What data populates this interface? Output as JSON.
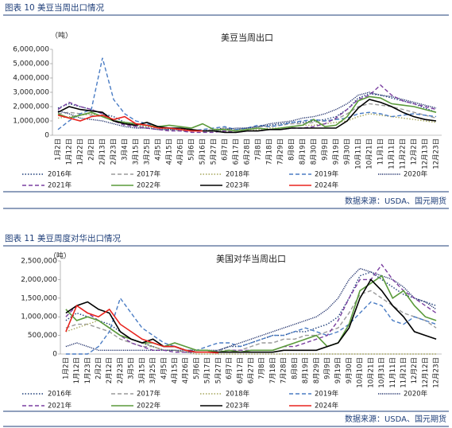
{
  "chart_data": [
    {
      "type": "line",
      "caption": "图表 10 美豆当周出口情况",
      "title": "美豆当周出口",
      "unit": "（吨）",
      "source": "数据来源：USDA、国元期货",
      "categories": [
        "1月2日",
        "1月12日",
        "1月22日",
        "2月2日",
        "2月13日",
        "2月23日",
        "3月4日",
        "3月15日",
        "3月25日",
        "4月5日",
        "4月15日",
        "4月26日",
        "5月6日",
        "5月16日",
        "5月27日",
        "6月7日",
        "6月17日",
        "6月28日",
        "7月8日",
        "7月18日",
        "7月29日",
        "8月8日",
        "8月19日",
        "8月30日",
        "9月9日",
        "9月19日",
        "9月30日",
        "10月11日",
        "10月21日",
        "11月1日",
        "11月11日",
        "11月22日",
        "12月2日",
        "12月13日",
        "12月23日"
      ],
      "ylim": [
        0,
        6000000
      ],
      "yticks": [
        0,
        {
          "value": 1000000,
          "label": "1,000,000"
        },
        {
          "value": 2000000,
          "label": "2,000,000"
        },
        {
          "value": 3000000,
          "label": "3,000,000"
        },
        {
          "value": 4000000,
          "label": "4,000,000"
        },
        {
          "value": 5000000,
          "label": "5,000,000"
        },
        {
          "value": 6000000,
          "label": "6,000,000"
        }
      ],
      "series": [
        {
          "name": "2016年",
          "color": "#1f3f7a",
          "style": "dotted",
          "values": [
            1900000,
            2200000,
            2000000,
            1800000,
            1500000,
            1300000,
            900000,
            700000,
            600000,
            500000,
            400000,
            400000,
            300000,
            300000,
            400000,
            500000,
            400000,
            500000,
            600000,
            700000,
            800000,
            900000,
            900000,
            1000000,
            1100000,
            1300000,
            1800000,
            2600000,
            2900000,
            2800000,
            2600000,
            2400000,
            2200000,
            1900000,
            1600000
          ]
        },
        {
          "name": "2017年",
          "color": "#9a9a9a",
          "style": "dashed",
          "values": [
            1500000,
            1600000,
            1500000,
            1400000,
            1300000,
            1100000,
            800000,
            600000,
            500000,
            400000,
            400000,
            300000,
            300000,
            300000,
            400000,
            500000,
            400000,
            500000,
            600000,
            600000,
            700000,
            800000,
            800000,
            900000,
            1000000,
            1100000,
            1500000,
            2000000,
            2200000,
            2100000,
            2000000,
            1800000,
            1600000,
            1400000,
            1200000
          ]
        },
        {
          "name": "2018年",
          "color": "#a5a55a",
          "style": "dotted",
          "values": [
            1200000,
            1300000,
            1400000,
            1500000,
            1300000,
            1000000,
            800000,
            700000,
            600000,
            500000,
            500000,
            400000,
            400000,
            300000,
            300000,
            300000,
            200000,
            300000,
            400000,
            500000,
            500000,
            600000,
            700000,
            700000,
            800000,
            900000,
            1000000,
            1300000,
            1500000,
            1400000,
            1300000,
            1200000,
            1100000,
            1000000,
            900000
          ]
        },
        {
          "name": "2019年",
          "color": "#4a7cc4",
          "style": "dashed",
          "values": [
            400000,
            1000000,
            1500000,
            1800000,
            5400000,
            2500000,
            1500000,
            1000000,
            800000,
            600000,
            500000,
            400000,
            300000,
            400000,
            500000,
            600000,
            400000,
            500000,
            700000,
            600000,
            700000,
            900000,
            1000000,
            1100000,
            1000000,
            1100000,
            1200000,
            1500000,
            1600000,
            1500000,
            1300000,
            1400000,
            1500000,
            1400000,
            1300000
          ]
        },
        {
          "name": "2020年",
          "color": "#1f2f6a",
          "style": "dense",
          "values": [
            1700000,
            1500000,
            1200000,
            1100000,
            1000000,
            800000,
            600000,
            500000,
            500000,
            400000,
            400000,
            400000,
            300000,
            300000,
            300000,
            400000,
            500000,
            500000,
            600000,
            800000,
            900000,
            1000000,
            1200000,
            1300000,
            1500000,
            1800000,
            2200000,
            2800000,
            3000000,
            2800000,
            2700000,
            2500000,
            2300000,
            2100000,
            1900000
          ]
        },
        {
          "name": "2021年",
          "color": "#7a3fa0",
          "style": "dashed",
          "values": [
            1800000,
            2300000,
            2000000,
            1800000,
            1500000,
            1000000,
            700000,
            600000,
            500000,
            400000,
            300000,
            300000,
            200000,
            200000,
            200000,
            300000,
            200000,
            300000,
            300000,
            400000,
            400000,
            500000,
            500000,
            600000,
            800000,
            1200000,
            1800000,
            2500000,
            2800000,
            3500000,
            2800000,
            2400000,
            2200000,
            2000000,
            1800000
          ]
        },
        {
          "name": "2022年",
          "color": "#5a9a3a",
          "style": "solid",
          "values": [
            1500000,
            1200000,
            1400000,
            1600000,
            1300000,
            1000000,
            900000,
            800000,
            700000,
            600000,
            700000,
            600000,
            500000,
            800000,
            400000,
            400000,
            300000,
            400000,
            500000,
            400000,
            500000,
            600000,
            700000,
            1100000,
            600000,
            700000,
            1300000,
            2400000,
            2700000,
            2600000,
            2200000,
            2100000,
            2000000,
            1800000,
            1600000
          ]
        },
        {
          "name": "2023年",
          "color": "#000000",
          "style": "solid",
          "values": [
            1600000,
            2000000,
            1800000,
            1700000,
            1600000,
            1000000,
            800000,
            700000,
            900000,
            600000,
            500000,
            500000,
            400000,
            300000,
            300000,
            200000,
            200000,
            300000,
            300000,
            400000,
            400000,
            500000,
            500000,
            500000,
            500000,
            500000,
            1000000,
            1900000,
            2500000,
            2300000,
            2000000,
            1600000,
            1300000,
            1100000,
            1000000
          ]
        },
        {
          "name": "2024年",
          "color": "#e8231e",
          "style": "solid",
          "values": [
            1400000,
            1200000,
            1000000,
            1300000,
            1400000,
            1100000,
            1300000,
            800000,
            700000,
            500000,
            500000,
            400000,
            300000,
            300000,
            null,
            null,
            null,
            null,
            null,
            null,
            null,
            null,
            null,
            null,
            null,
            null,
            null,
            null,
            null,
            null,
            null,
            null,
            null,
            null,
            null
          ]
        }
      ]
    },
    {
      "type": "line",
      "caption": "图表 11 美豆周度对华出口情况",
      "title": "美国对华当周出口",
      "unit": "（吨）",
      "source": "数据来源：USDA、国元期货",
      "categories": [
        "1月2日",
        "1月12日",
        "1月23日",
        "2月2日",
        "2月12日",
        "2月23日",
        "3月5日",
        "3月15日",
        "3月25日",
        "4月5日",
        "4月15日",
        "4月26日",
        "5月6日",
        "5月17日",
        "5月27日",
        "6月7日",
        "6月17日",
        "6月27日",
        "7月8日",
        "7月18日",
        "7月28日",
        "8月8日",
        "8月19日",
        "8月29日",
        "9月9日",
        "9月19日",
        "9月30日",
        "10月10日",
        "10月21日",
        "10月31日",
        "11月11日",
        "11月21日",
        "12月2日",
        "12月12日",
        "12月23日"
      ],
      "ylim": [
        0,
        2500000
      ],
      "yticks": [
        0,
        {
          "value": 500000,
          "label": "500,000"
        },
        {
          "value": 1000000,
          "label": "1,000,000"
        },
        {
          "value": 1500000,
          "label": "1,500,000"
        },
        {
          "value": 2000000,
          "label": "2,000,000"
        },
        {
          "value": 2500000,
          "label": "2,500,000"
        }
      ],
      "series": [
        {
          "name": "2016年",
          "color": "#1f3f7a",
          "style": "dotted",
          "values": [
            900000,
            1100000,
            1000000,
            900000,
            800000,
            600000,
            400000,
            300000,
            200000,
            100000,
            100000,
            50000,
            50000,
            50000,
            100000,
            200000,
            200000,
            300000,
            400000,
            500000,
            500000,
            600000,
            600000,
            700000,
            800000,
            1000000,
            1500000,
            2100000,
            2200000,
            2000000,
            1800000,
            1600000,
            1500000,
            1400000,
            1300000
          ]
        },
        {
          "name": "2017年",
          "color": "#9a9a9a",
          "style": "dashed",
          "values": [
            700000,
            800000,
            800000,
            700000,
            600000,
            400000,
            300000,
            200000,
            200000,
            100000,
            100000,
            50000,
            50000,
            50000,
            100000,
            100000,
            100000,
            200000,
            300000,
            300000,
            400000,
            400000,
            500000,
            500000,
            600000,
            700000,
            1100000,
            1600000,
            1700000,
            1500000,
            1300000,
            1100000,
            1000000,
            900000,
            700000
          ]
        },
        {
          "name": "2018年",
          "color": "#a5a55a",
          "style": "dotted",
          "values": [
            600000,
            700000,
            800000,
            900000,
            700000,
            500000,
            400000,
            300000,
            200000,
            100000,
            100000,
            50000,
            0,
            0,
            0,
            0,
            0,
            0,
            0,
            0,
            0,
            0,
            0,
            0,
            0,
            0,
            0,
            0,
            0,
            0,
            0,
            0,
            0,
            0,
            0
          ]
        },
        {
          "name": "2019年",
          "color": "#4a7cc4",
          "style": "dashed",
          "values": [
            0,
            0,
            0,
            200000,
            600000,
            1500000,
            1100000,
            700000,
            500000,
            300000,
            200000,
            100000,
            100000,
            200000,
            300000,
            300000,
            200000,
            300000,
            400000,
            500000,
            500000,
            600000,
            700000,
            600000,
            500000,
            600000,
            800000,
            1100000,
            1400000,
            1300000,
            900000,
            800000,
            1000000,
            900000,
            800000
          ]
        },
        {
          "name": "2020年",
          "color": "#1f2f6a",
          "style": "dense",
          "values": [
            200000,
            300000,
            200000,
            100000,
            100000,
            100000,
            100000,
            100000,
            100000,
            100000,
            100000,
            100000,
            100000,
            100000,
            100000,
            200000,
            300000,
            400000,
            500000,
            600000,
            700000,
            800000,
            900000,
            1000000,
            1200000,
            1500000,
            2000000,
            2300000,
            2200000,
            2100000,
            2000000,
            1800000,
            1500000,
            1400000,
            1200000
          ]
        },
        {
          "name": "2021年",
          "color": "#7a3fa0",
          "style": "dashed",
          "values": [
            1000000,
            1300000,
            1100000,
            900000,
            700000,
            500000,
            300000,
            200000,
            100000,
            100000,
            50000,
            50000,
            50000,
            50000,
            50000,
            100000,
            100000,
            100000,
            100000,
            100000,
            200000,
            200000,
            300000,
            400000,
            500000,
            900000,
            1500000,
            2000000,
            2000000,
            2400000,
            2000000,
            1700000,
            1500000,
            1300000,
            1100000
          ]
        },
        {
          "name": "2022年",
          "color": "#5a9a3a",
          "style": "solid",
          "values": [
            1200000,
            900000,
            1000000,
            900000,
            700000,
            500000,
            400000,
            300000,
            300000,
            200000,
            300000,
            200000,
            100000,
            100000,
            50000,
            100000,
            50000,
            100000,
            100000,
            100000,
            200000,
            300000,
            400000,
            500000,
            200000,
            300000,
            800000,
            1700000,
            1900000,
            2100000,
            1500000,
            1700000,
            1300000,
            1000000,
            900000
          ]
        },
        {
          "name": "2023年",
          "color": "#000000",
          "style": "solid",
          "values": [
            1100000,
            1300000,
            1400000,
            1200000,
            1100000,
            600000,
            400000,
            300000,
            400000,
            200000,
            200000,
            100000,
            50000,
            50000,
            50000,
            50000,
            50000,
            50000,
            50000,
            50000,
            100000,
            100000,
            100000,
            100000,
            200000,
            300000,
            700000,
            1500000,
            2000000,
            1700000,
            1300000,
            1000000,
            600000,
            500000,
            400000
          ]
        },
        {
          "name": "2024年",
          "color": "#e8231e",
          "style": "solid",
          "values": [
            600000,
            1300000,
            1100000,
            1000000,
            1200000,
            800000,
            600000,
            400000,
            300000,
            200000,
            200000,
            100000,
            50000,
            50000,
            30000,
            null,
            null,
            null,
            null,
            null,
            null,
            null,
            null,
            null,
            null,
            null,
            null,
            null,
            null,
            null,
            null,
            null,
            null,
            null,
            null
          ]
        }
      ]
    }
  ]
}
